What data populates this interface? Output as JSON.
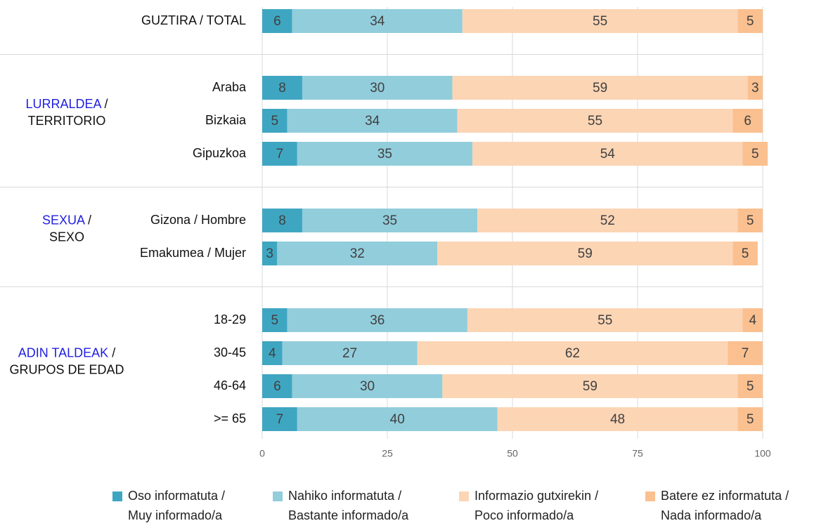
{
  "chart_data": {
    "type": "stacked_barh",
    "categories": [
      "GUZTIRA / TOTAL",
      "Araba",
      "Bizkaia",
      "Gipuzkoa",
      "Gizona / Hombre",
      "Emakumea / Mujer",
      "18-29",
      "30-45",
      "46-64",
      ">= 65"
    ],
    "groups": [
      {
        "name": "LURRALDEA",
        "separator": "/",
        "subtitle": "TERRITORIO"
      },
      {
        "name": "SEXUA",
        "separator": "/",
        "subtitle": "SEXO"
      },
      {
        "name": "ADIN TALDEAK",
        "separator": "/",
        "subtitle": "GRUPOS DE EDAD"
      }
    ],
    "group_color": "#2020e0",
    "series": [
      {
        "name": "Oso informatuta / Muy informado/a",
        "color": "#3fa6c2",
        "values": [
          6,
          8,
          5,
          7,
          8,
          3,
          5,
          4,
          6,
          7
        ]
      },
      {
        "name": "Nahiko informatuta / Bastante informado/a",
        "color": "#92cddc",
        "values": [
          34,
          30,
          34,
          35,
          35,
          32,
          36,
          27,
          30,
          40
        ]
      },
      {
        "name": "Informazio gutxirekin / Poco informado/a",
        "color": "#fcd5b5",
        "values": [
          55,
          59,
          55,
          54,
          52,
          59,
          55,
          62,
          59,
          48
        ]
      },
      {
        "name": "Batere ez informatuta / Nada informado/a",
        "color": "#fac090",
        "values": [
          5,
          3,
          6,
          5,
          5,
          5,
          4,
          7,
          5,
          5
        ]
      }
    ],
    "xlim": [
      0,
      100
    ],
    "xticks": [
      0,
      25,
      50,
      75,
      100
    ],
    "grid": true,
    "legend": "bottom"
  }
}
